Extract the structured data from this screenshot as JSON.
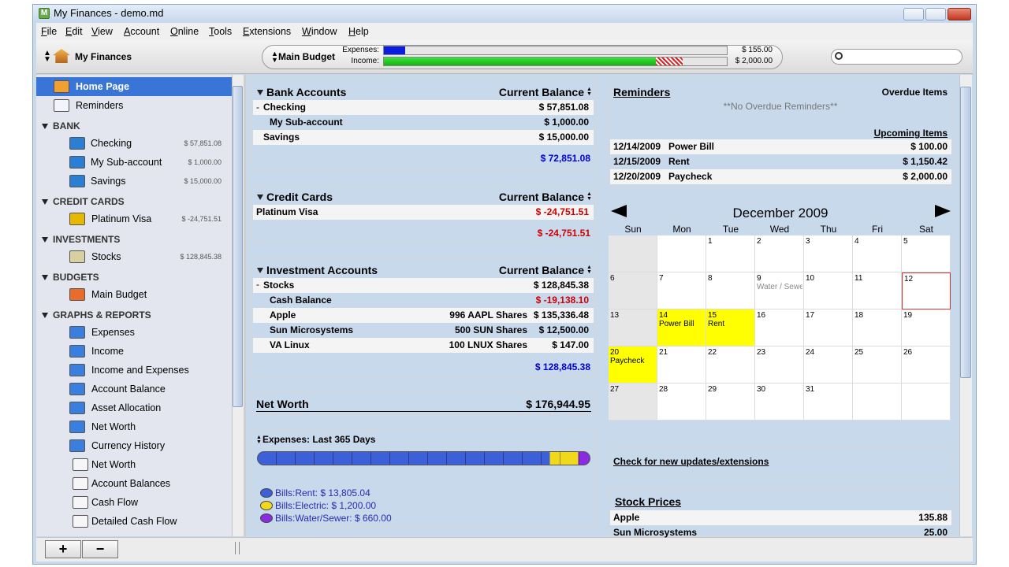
{
  "window": {
    "title": "My Finances - demo.md"
  },
  "menu": [
    "File",
    "Edit",
    "View",
    "Account",
    "Online",
    "Tools",
    "Extensions",
    "Window",
    "Help"
  ],
  "toolbar": {
    "account": "My Finances",
    "budget": "Main Budget",
    "expenses_label": "Expenses:",
    "income_label": "Income:",
    "expenses_value": "$ 155.00",
    "income_value": "$ 2,000.00"
  },
  "sidebar": {
    "top": [
      "Home Page",
      "Reminders"
    ],
    "sections": [
      {
        "title": "BANK",
        "items": [
          {
            "label": "Checking",
            "amount": "$ 57,851.08"
          },
          {
            "label": "My Sub-account",
            "amount": "$ 1,000.00"
          },
          {
            "label": "Savings",
            "amount": "$ 15,000.00"
          }
        ]
      },
      {
        "title": "CREDIT CARDS",
        "items": [
          {
            "label": "Platinum Visa",
            "amount": "$ -24,751.51"
          }
        ]
      },
      {
        "title": "INVESTMENTS",
        "items": [
          {
            "label": "Stocks",
            "amount": "$ 128,845.38"
          }
        ]
      },
      {
        "title": "BUDGETS",
        "items": [
          {
            "label": "Main Budget"
          }
        ]
      },
      {
        "title": "GRAPHS & REPORTS",
        "items": [
          {
            "label": "Expenses"
          },
          {
            "label": "Income"
          },
          {
            "label": "Income and Expenses"
          },
          {
            "label": "Account Balance"
          },
          {
            "label": "Asset Allocation"
          },
          {
            "label": "Net Worth"
          },
          {
            "label": "Currency History"
          },
          {
            "label": "Net Worth"
          },
          {
            "label": "Account Balances"
          },
          {
            "label": "Cash Flow"
          },
          {
            "label": "Detailed Cash Flow"
          }
        ]
      }
    ],
    "buttons": [
      "+",
      "−"
    ]
  },
  "bank": {
    "title": "Bank Accounts",
    "column": "Current Balance",
    "rows": [
      {
        "name": "Checking",
        "balance": "$ 57,851.08",
        "level": 0
      },
      {
        "name": "My Sub-account",
        "balance": "$ 1,000.00",
        "level": 1
      },
      {
        "name": "Savings",
        "balance": "$ 15,000.00",
        "level": 0
      }
    ],
    "total": "$ 72,851.08"
  },
  "credit": {
    "title": "Credit Cards",
    "column": "Current Balance",
    "rows": [
      {
        "name": "Platinum Visa",
        "balance": "$ -24,751.51",
        "level": 0
      }
    ],
    "total": "$ -24,751.51"
  },
  "investments": {
    "title": "Investment Accounts",
    "column": "Current Balance",
    "rows": [
      {
        "name": "Stocks",
        "balance": "$ 128,845.38",
        "level": 0
      },
      {
        "name": "Cash Balance",
        "balance": "$ -19,138.10",
        "level": 1
      },
      {
        "name": "Apple",
        "shares": "996 AAPL Shares",
        "balance": "$ 135,336.48",
        "level": 1
      },
      {
        "name": "Sun Microsystems",
        "shares": "500 SUN Shares",
        "balance": "$ 12,500.00",
        "level": 1
      },
      {
        "name": "VA Linux",
        "shares": "100 LNUX Shares",
        "balance": "$ 147.00",
        "level": 1
      }
    ],
    "total": "$ 128,845.38"
  },
  "net_worth": {
    "label": "Net Worth",
    "value": "$ 176,944.95"
  },
  "expenses": {
    "title": "Expenses: Last 365 Days",
    "legend": [
      {
        "label": "Bills:Rent: $ 13,805.04",
        "color": "#3d5fd8"
      },
      {
        "label": "Bills:Electric: $ 1,200.00",
        "color": "#f0d81a"
      },
      {
        "label": "Bills:Water/Sewer: $ 660.00",
        "color": "#8a2be2"
      }
    ]
  },
  "reminders": {
    "title": "Reminders",
    "overdue_title": "Overdue Items",
    "overdue_note": "**No Overdue Reminders**",
    "upcoming_title": "Upcoming Items",
    "rows": [
      {
        "date": "12/14/2009",
        "name": "Power Bill",
        "amount": "$ 100.00"
      },
      {
        "date": "12/15/2009",
        "name": "Rent",
        "amount": "$ 1,150.42"
      },
      {
        "date": "12/20/2009",
        "name": "Paycheck",
        "amount": "$ 2,000.00"
      }
    ]
  },
  "calendar": {
    "month": "December 2009",
    "weekdays": [
      "Sun",
      "Mon",
      "Tue",
      "Wed",
      "Thu",
      "Fri",
      "Sat"
    ],
    "weeks": [
      [
        null,
        null,
        1,
        2,
        3,
        4,
        5
      ],
      [
        6,
        7,
        8,
        9,
        10,
        11,
        12
      ],
      [
        13,
        14,
        15,
        16,
        17,
        18,
        19
      ],
      [
        20,
        21,
        22,
        23,
        24,
        25,
        26
      ],
      [
        27,
        28,
        29,
        30,
        31,
        null,
        null
      ]
    ],
    "events": [
      {
        "day": 9,
        "label": "Water / Sewer",
        "highlight": false
      },
      {
        "day": 14,
        "label": "Power Bill",
        "highlight": true
      },
      {
        "day": 15,
        "label": "Rent",
        "highlight": true
      },
      {
        "day": 20,
        "label": "Paycheck",
        "highlight": true
      }
    ],
    "today": 12
  },
  "updates": "Check for new updates/extensions",
  "stocks": {
    "title": "Stock Prices",
    "rows": [
      {
        "name": "Apple",
        "price": "135.88"
      },
      {
        "name": "Sun Microsystems",
        "price": "25.00"
      }
    ]
  }
}
